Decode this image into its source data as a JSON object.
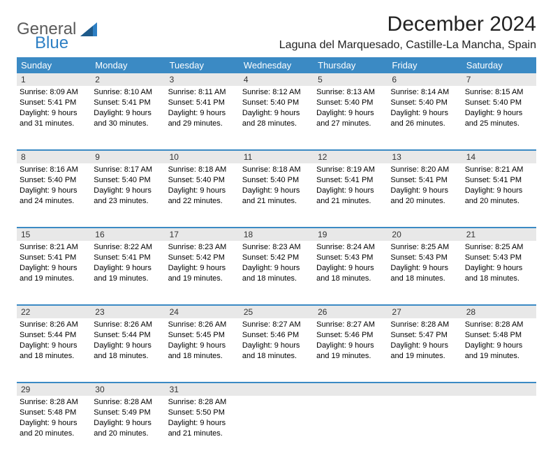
{
  "logo": {
    "text1": "General",
    "text2": "Blue"
  },
  "title": "December 2024",
  "location": "Laguna del Marquesado, Castille-La Mancha, Spain",
  "colors": {
    "header_bg": "#3b8ac4",
    "header_text": "#ffffff",
    "daynum_bg": "#e8e8e8",
    "row_border": "#3b8ac4",
    "logo_gray": "#5a5a5a",
    "logo_blue": "#2d7fc4"
  },
  "day_headers": [
    "Sunday",
    "Monday",
    "Tuesday",
    "Wednesday",
    "Thursday",
    "Friday",
    "Saturday"
  ],
  "weeks": [
    [
      {
        "n": "1",
        "sr": "8:09 AM",
        "ss": "5:41 PM",
        "dl": "9 hours and 31 minutes."
      },
      {
        "n": "2",
        "sr": "8:10 AM",
        "ss": "5:41 PM",
        "dl": "9 hours and 30 minutes."
      },
      {
        "n": "3",
        "sr": "8:11 AM",
        "ss": "5:41 PM",
        "dl": "9 hours and 29 minutes."
      },
      {
        "n": "4",
        "sr": "8:12 AM",
        "ss": "5:40 PM",
        "dl": "9 hours and 28 minutes."
      },
      {
        "n": "5",
        "sr": "8:13 AM",
        "ss": "5:40 PM",
        "dl": "9 hours and 27 minutes."
      },
      {
        "n": "6",
        "sr": "8:14 AM",
        "ss": "5:40 PM",
        "dl": "9 hours and 26 minutes."
      },
      {
        "n": "7",
        "sr": "8:15 AM",
        "ss": "5:40 PM",
        "dl": "9 hours and 25 minutes."
      }
    ],
    [
      {
        "n": "8",
        "sr": "8:16 AM",
        "ss": "5:40 PM",
        "dl": "9 hours and 24 minutes."
      },
      {
        "n": "9",
        "sr": "8:17 AM",
        "ss": "5:40 PM",
        "dl": "9 hours and 23 minutes."
      },
      {
        "n": "10",
        "sr": "8:18 AM",
        "ss": "5:40 PM",
        "dl": "9 hours and 22 minutes."
      },
      {
        "n": "11",
        "sr": "8:18 AM",
        "ss": "5:40 PM",
        "dl": "9 hours and 21 minutes."
      },
      {
        "n": "12",
        "sr": "8:19 AM",
        "ss": "5:41 PM",
        "dl": "9 hours and 21 minutes."
      },
      {
        "n": "13",
        "sr": "8:20 AM",
        "ss": "5:41 PM",
        "dl": "9 hours and 20 minutes."
      },
      {
        "n": "14",
        "sr": "8:21 AM",
        "ss": "5:41 PM",
        "dl": "9 hours and 20 minutes."
      }
    ],
    [
      {
        "n": "15",
        "sr": "8:21 AM",
        "ss": "5:41 PM",
        "dl": "9 hours and 19 minutes."
      },
      {
        "n": "16",
        "sr": "8:22 AM",
        "ss": "5:41 PM",
        "dl": "9 hours and 19 minutes."
      },
      {
        "n": "17",
        "sr": "8:23 AM",
        "ss": "5:42 PM",
        "dl": "9 hours and 19 minutes."
      },
      {
        "n": "18",
        "sr": "8:23 AM",
        "ss": "5:42 PM",
        "dl": "9 hours and 18 minutes."
      },
      {
        "n": "19",
        "sr": "8:24 AM",
        "ss": "5:43 PM",
        "dl": "9 hours and 18 minutes."
      },
      {
        "n": "20",
        "sr": "8:25 AM",
        "ss": "5:43 PM",
        "dl": "9 hours and 18 minutes."
      },
      {
        "n": "21",
        "sr": "8:25 AM",
        "ss": "5:43 PM",
        "dl": "9 hours and 18 minutes."
      }
    ],
    [
      {
        "n": "22",
        "sr": "8:26 AM",
        "ss": "5:44 PM",
        "dl": "9 hours and 18 minutes."
      },
      {
        "n": "23",
        "sr": "8:26 AM",
        "ss": "5:44 PM",
        "dl": "9 hours and 18 minutes."
      },
      {
        "n": "24",
        "sr": "8:26 AM",
        "ss": "5:45 PM",
        "dl": "9 hours and 18 minutes."
      },
      {
        "n": "25",
        "sr": "8:27 AM",
        "ss": "5:46 PM",
        "dl": "9 hours and 18 minutes."
      },
      {
        "n": "26",
        "sr": "8:27 AM",
        "ss": "5:46 PM",
        "dl": "9 hours and 19 minutes."
      },
      {
        "n": "27",
        "sr": "8:28 AM",
        "ss": "5:47 PM",
        "dl": "9 hours and 19 minutes."
      },
      {
        "n": "28",
        "sr": "8:28 AM",
        "ss": "5:48 PM",
        "dl": "9 hours and 19 minutes."
      }
    ],
    [
      {
        "n": "29",
        "sr": "8:28 AM",
        "ss": "5:48 PM",
        "dl": "9 hours and 20 minutes."
      },
      {
        "n": "30",
        "sr": "8:28 AM",
        "ss": "5:49 PM",
        "dl": "9 hours and 20 minutes."
      },
      {
        "n": "31",
        "sr": "8:28 AM",
        "ss": "5:50 PM",
        "dl": "9 hours and 21 minutes."
      },
      null,
      null,
      null,
      null
    ]
  ],
  "labels": {
    "sunrise": "Sunrise:",
    "sunset": "Sunset:",
    "daylight": "Daylight:"
  }
}
